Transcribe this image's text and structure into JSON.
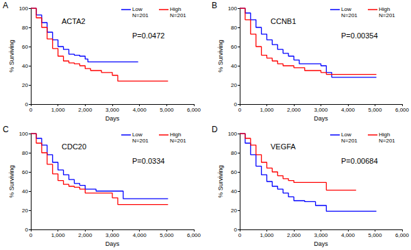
{
  "chart_data": [
    {
      "type": "line",
      "panel": "A",
      "title": "ACTA2",
      "annotation": "P=0.0472",
      "xlabel": "Days",
      "ylabel": "% Surviving",
      "xlim": [
        0,
        6000
      ],
      "xticks": [
        0,
        1000,
        2000,
        3000,
        4000,
        5000,
        6000
      ],
      "ylim": [
        0,
        100
      ],
      "yticks": [
        0,
        20,
        40,
        60,
        80,
        100
      ],
      "grid": false,
      "line_style": "step",
      "series": [
        {
          "name": "Low",
          "subtitle": "N=201",
          "color": "#0000ff",
          "x": [
            0,
            200,
            400,
            600,
            800,
            1000,
            1200,
            1400,
            1600,
            1800,
            2000,
            2100,
            3950
          ],
          "values": [
            100,
            93,
            85,
            75,
            67,
            60,
            57,
            52,
            51,
            50,
            47,
            44,
            44
          ]
        },
        {
          "name": "High",
          "subtitle": "N=201",
          "color": "#ff0000",
          "x": [
            0,
            200,
            400,
            600,
            800,
            1000,
            1200,
            1400,
            1600,
            1800,
            2000,
            2200,
            2600,
            3000,
            3200,
            5050
          ],
          "values": [
            100,
            90,
            80,
            68,
            58,
            50,
            45,
            43,
            42,
            40,
            37,
            35,
            33,
            30,
            24,
            24
          ]
        }
      ]
    },
    {
      "type": "line",
      "panel": "B",
      "title": "CCNB1",
      "annotation": "P=0.00354",
      "xlabel": "Days",
      "ylabel": "% Surviving",
      "xlim": [
        0,
        6000
      ],
      "xticks": [
        0,
        1000,
        2000,
        3000,
        4000,
        5000,
        6000
      ],
      "ylim": [
        0,
        100
      ],
      "yticks": [
        0,
        20,
        40,
        60,
        80,
        100
      ],
      "grid": false,
      "line_style": "step",
      "series": [
        {
          "name": "Low",
          "subtitle": "N=201",
          "color": "#0000ff",
          "x": [
            0,
            200,
            400,
            600,
            800,
            1000,
            1200,
            1400,
            1600,
            1800,
            2000,
            2200,
            2600,
            3000,
            3200,
            3400,
            5050
          ],
          "values": [
            100,
            95,
            88,
            80,
            73,
            67,
            62,
            57,
            53,
            50,
            46,
            42,
            42,
            40,
            33,
            28,
            28
          ]
        },
        {
          "name": "High",
          "subtitle": "N=201",
          "color": "#ff0000",
          "x": [
            0,
            200,
            400,
            600,
            800,
            1000,
            1200,
            1400,
            1600,
            2000,
            2400,
            3000,
            3200,
            5050
          ],
          "values": [
            100,
            88,
            73,
            60,
            51,
            48,
            45,
            42,
            40,
            38,
            35,
            33,
            31,
            31
          ]
        }
      ]
    },
    {
      "type": "line",
      "panel": "C",
      "title": "CDC20",
      "annotation": "P=0.0334",
      "xlabel": "Days",
      "ylabel": "% Surviving",
      "xlim": [
        0,
        6000
      ],
      "xticks": [
        0,
        1000,
        2000,
        3000,
        4000,
        5000,
        6000
      ],
      "ylim": [
        0,
        100
      ],
      "yticks": [
        0,
        20,
        40,
        60,
        80,
        100
      ],
      "grid": false,
      "line_style": "step",
      "series": [
        {
          "name": "Low",
          "subtitle": "N=201",
          "color": "#0000ff",
          "x": [
            0,
            200,
            400,
            600,
            800,
            1000,
            1200,
            1400,
            1600,
            1800,
            2000,
            2400,
            3000,
            3400,
            5050
          ],
          "values": [
            100,
            95,
            88,
            78,
            70,
            62,
            57,
            52,
            48,
            46,
            42,
            40,
            40,
            32,
            32
          ]
        },
        {
          "name": "High",
          "subtitle": "N=201",
          "color": "#ff0000",
          "x": [
            0,
            200,
            400,
            600,
            800,
            1000,
            1200,
            1400,
            1600,
            1800,
            2000,
            2400,
            3000,
            3200,
            5050
          ],
          "values": [
            100,
            90,
            80,
            68,
            58,
            51,
            47,
            45,
            44,
            42,
            38,
            38,
            33,
            26,
            26
          ]
        }
      ]
    },
    {
      "type": "line",
      "panel": "D",
      "title": "VEGFA",
      "annotation": "P=0.00684",
      "xlabel": "Days",
      "ylabel": "% Surviving",
      "xlim": [
        0,
        6000
      ],
      "xticks": [
        0,
        1000,
        2000,
        3000,
        4000,
        5000,
        6000
      ],
      "ylim": [
        0,
        100
      ],
      "yticks": [
        0,
        20,
        40,
        60,
        80,
        100
      ],
      "grid": false,
      "line_style": "step",
      "series": [
        {
          "name": "Low",
          "subtitle": "N=201",
          "color": "#0000ff",
          "x": [
            0,
            200,
            400,
            600,
            800,
            1000,
            1200,
            1400,
            1600,
            1800,
            2000,
            2400,
            2800,
            3200,
            5050
          ],
          "values": [
            100,
            90,
            78,
            66,
            57,
            50,
            45,
            42,
            38,
            34,
            30,
            29,
            25,
            19,
            19
          ]
        },
        {
          "name": "High",
          "subtitle": "N=201",
          "color": "#ff0000",
          "x": [
            0,
            200,
            400,
            600,
            800,
            1000,
            1200,
            1400,
            1600,
            1800,
            2000,
            2600,
            3200,
            4300
          ],
          "values": [
            100,
            95,
            88,
            78,
            70,
            64,
            60,
            56,
            53,
            51,
            49,
            49,
            41,
            41
          ]
        }
      ]
    }
  ]
}
